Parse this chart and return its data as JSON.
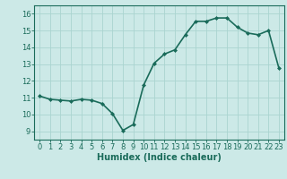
{
  "x": [
    0,
    1,
    2,
    3,
    4,
    5,
    6,
    7,
    8,
    9,
    10,
    11,
    12,
    13,
    14,
    15,
    16,
    17,
    18,
    19,
    20,
    21,
    22,
    23
  ],
  "y": [
    11.1,
    10.9,
    10.85,
    10.8,
    10.9,
    10.85,
    10.65,
    10.05,
    9.05,
    9.4,
    11.75,
    13.05,
    13.6,
    13.85,
    14.75,
    15.55,
    15.55,
    15.75,
    15.75,
    15.2,
    14.85,
    14.75,
    15.0,
    12.75
  ],
  "line_color": "#1a6b5a",
  "marker": "D",
  "marker_size": 2.0,
  "linewidth": 1.2,
  "xlabel": "Humidex (Indice chaleur)",
  "xlabel_fontsize": 7,
  "xlabel_fontweight": "bold",
  "xlim": [
    -0.5,
    23.5
  ],
  "ylim": [
    8.5,
    16.5
  ],
  "yticks": [
    9,
    10,
    11,
    12,
    13,
    14,
    15,
    16
  ],
  "xticks": [
    0,
    1,
    2,
    3,
    4,
    5,
    6,
    7,
    8,
    9,
    10,
    11,
    12,
    13,
    14,
    15,
    16,
    17,
    18,
    19,
    20,
    21,
    22,
    23
  ],
  "bg_color": "#cce9e7",
  "grid_color": "#aad4d0",
  "tick_color": "#1a6b5a",
  "tick_fontsize": 6,
  "label_color": "#1a6b5a",
  "spine_color": "#1a6b5a"
}
